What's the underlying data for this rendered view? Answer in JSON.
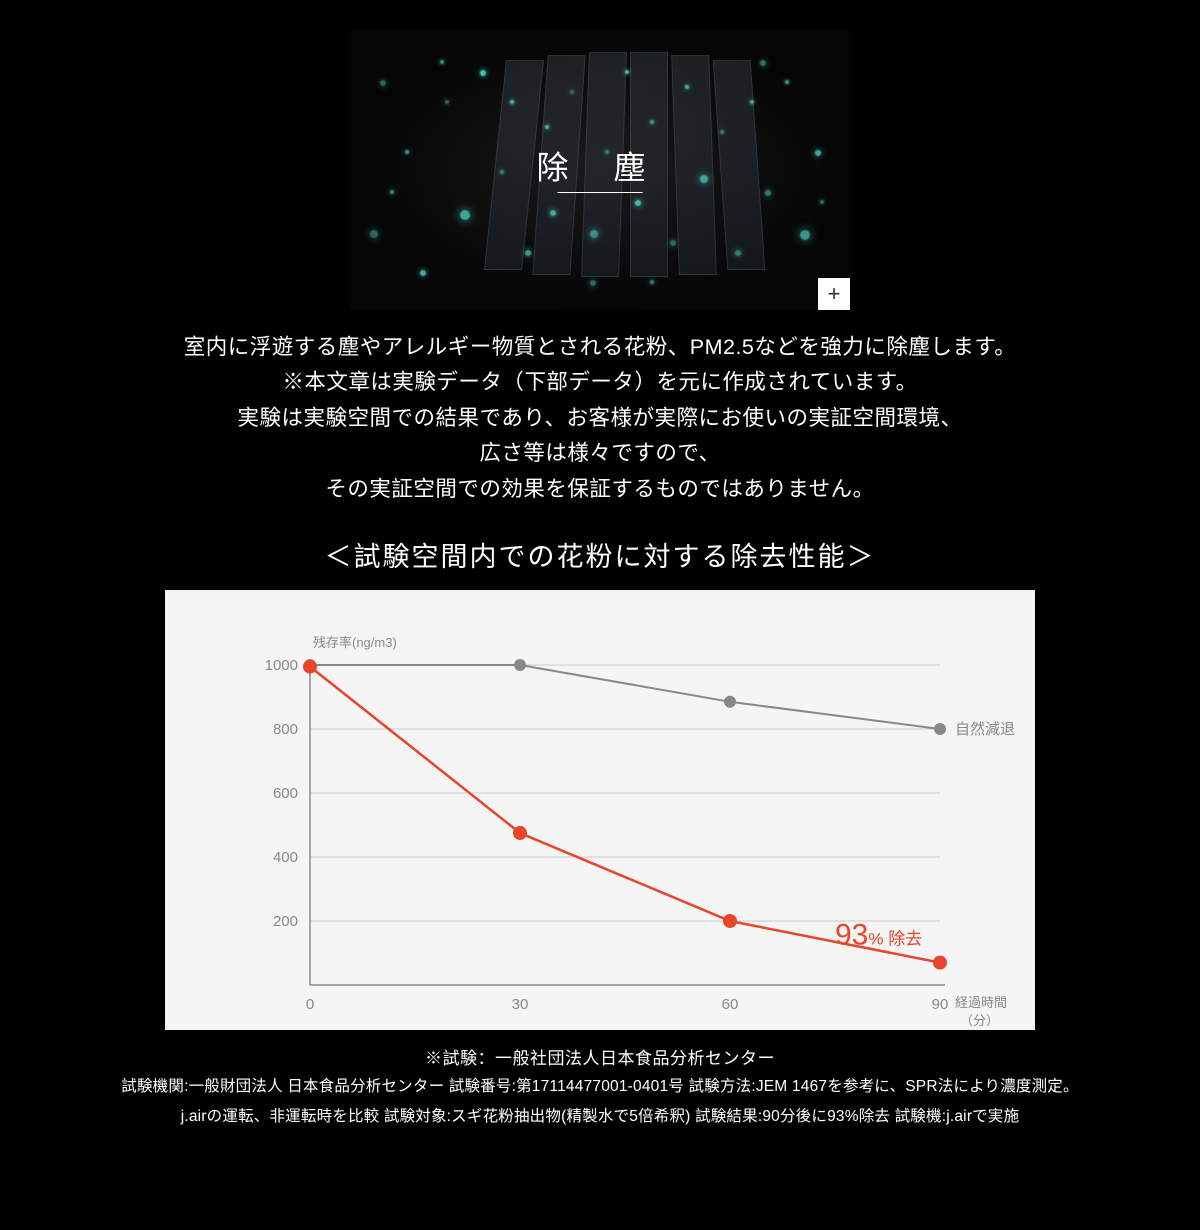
{
  "hero": {
    "title": "除 塵",
    "plus_symbol": "+",
    "background_color": "#050505",
    "particle_color": "#4fd8c8",
    "slat_count": 6
  },
  "description": {
    "line1": "室内に浮遊する塵やアレルギー物質とされる花粉、PM2.5などを強力に除塵します。",
    "line2": "※本文章は実験データ（下部データ）を元に作成されています。",
    "line3": "実験は実験空間での結果であり、お客様が実際にお使いの実証空間環境、",
    "line4": "広さ等は様々ですので、",
    "line5": "その実証空間での効果を保証するものではありません。"
  },
  "chart": {
    "title": "＜試験空間内での花粉に対する除去性能＞",
    "type": "line",
    "background_color": "#f5f5f5",
    "ylabel_top": "残存率(ng/m3)",
    "xlabel_right": "経過時間",
    "xlabel_right2": "（分）",
    "ylim": [
      0,
      1000
    ],
    "ytick_step": 200,
    "yticks": [
      "1000",
      "800",
      "600",
      "400",
      "200"
    ],
    "xticks": [
      "0",
      "30",
      "60",
      "90"
    ],
    "x_values": [
      0,
      30,
      60,
      90
    ],
    "series": [
      {
        "name": "自然減退",
        "label": "自然減退",
        "color": "#888888",
        "marker_color": "#888888",
        "line_width": 2,
        "marker_radius": 6,
        "values": [
          1000,
          1000,
          885,
          800
        ]
      },
      {
        "name": "j.air",
        "label_prefix": "93",
        "label_suffix_pct": "%",
        "label_suffix_txt": " 除去",
        "color": "#e8452a",
        "marker_color": "#e8452a",
        "line_width": 2.5,
        "marker_radius": 7,
        "values": [
          995,
          475,
          200,
          70
        ]
      }
    ],
    "grid_color": "#cccccc",
    "axis_color": "#888888",
    "tick_font_color": "#888888",
    "tick_fontsize": 15,
    "ylabel_fontsize": 13,
    "series_label_fontsize": 15,
    "result_big_fontsize": 30,
    "result_small_fontsize": 17
  },
  "footnotes": {
    "line1": "※試験：一般社団法人日本食品分析センター",
    "line2": "試験機関:一般財団法人 日本食品分析センター 試験番号:第17114477001-0401号 試験方法:JEM 1467を参考に、SPR法により濃度測定。",
    "line3": "j.airの運転、非運転時を比較 試験対象:スギ花粉抽出物(精製水で5倍希釈) 試験結果:90分後に93%除去 試験機:j.airで実施"
  }
}
